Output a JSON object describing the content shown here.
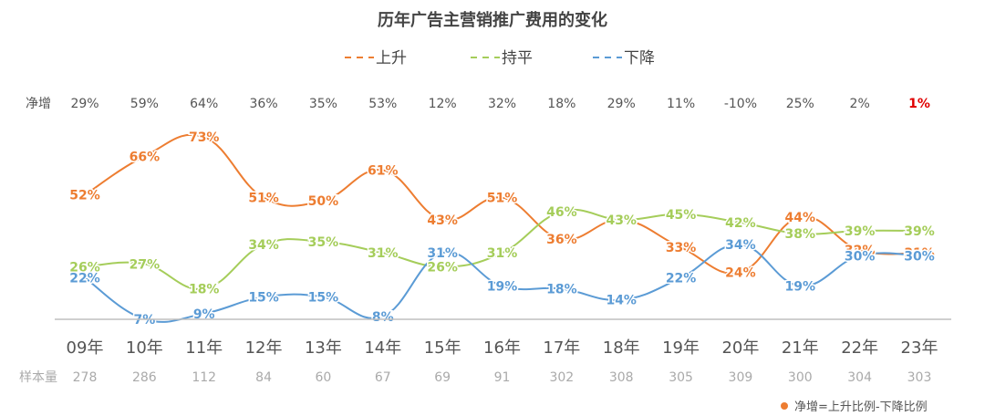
{
  "chart_data": {
    "type": "line",
    "title": "历年广告主营销推广费用的变化",
    "categories": [
      "09年",
      "10年",
      "11年",
      "12年",
      "13年",
      "14年",
      "15年",
      "16年",
      "17年",
      "18年",
      "19年",
      "20年",
      "21年",
      "22年",
      "23年"
    ],
    "series": [
      {
        "name": "上升",
        "color": "#ED7D31",
        "values": [
          52,
          66,
          73,
          51,
          50,
          61,
          43,
          51,
          36,
          43,
          33,
          24,
          44,
          32,
          31
        ]
      },
      {
        "name": "持平",
        "color": "#A5CD5A",
        "values": [
          26,
          27,
          18,
          34,
          35,
          31,
          26,
          31,
          46,
          43,
          45,
          42,
          38,
          39,
          39
        ]
      },
      {
        "name": "下降",
        "color": "#5B9BD5",
        "values": [
          22,
          7,
          9,
          15,
          15,
          8,
          31,
          19,
          18,
          14,
          22,
          34,
          19,
          30,
          30
        ]
      }
    ],
    "net": {
      "label": "净增",
      "values": [
        "29%",
        "59%",
        "64%",
        "36%",
        "35%",
        "53%",
        "12%",
        "32%",
        "18%",
        "29%",
        "11%",
        "-10%",
        "25%",
        "2%",
        "1%"
      ],
      "highlight_color": "#E00000"
    },
    "sample": {
      "label": "样本量",
      "values": [
        "278",
        "286",
        "112",
        "84",
        "60",
        "67",
        "69",
        "91",
        "302",
        "308",
        "305",
        "309",
        "300",
        "304",
        "303"
      ]
    },
    "footnote": "净增=上升比例-下降比例",
    "ylim": [
      0,
      80
    ],
    "grid": false,
    "legend_position": "top-center"
  }
}
